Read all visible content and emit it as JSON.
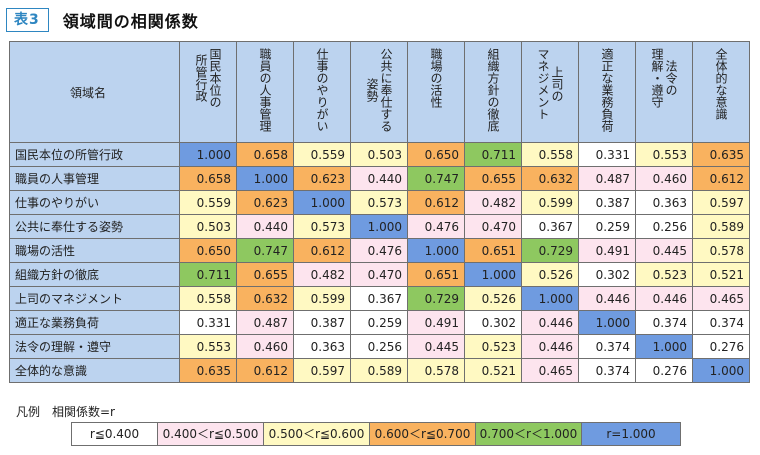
{
  "header": {
    "badge": "表3",
    "title": "領域間の相関係数"
  },
  "table": {
    "corner_label": "領域名",
    "columns": [
      "国民本位の\n所管行政",
      "職員の人事管理",
      "仕事のやりがい",
      "公共に奉仕する\n姿勢",
      "職場の活性",
      "組織方針の徹底",
      "上司の\nマネジメント",
      "適正な業務負荷",
      "法令の\n理解・遵守",
      "全体的な意識"
    ],
    "rows": [
      {
        "label": "国民本位の所管行政",
        "values": [
          "1.000",
          "0.658",
          "0.559",
          "0.503",
          "0.650",
          "0.711",
          "0.558",
          "0.331",
          "0.553",
          "0.635"
        ]
      },
      {
        "label": "職員の人事管理",
        "values": [
          "0.658",
          "1.000",
          "0.623",
          "0.440",
          "0.747",
          "0.655",
          "0.632",
          "0.487",
          "0.460",
          "0.612"
        ]
      },
      {
        "label": "仕事のやりがい",
        "values": [
          "0.559",
          "0.623",
          "1.000",
          "0.573",
          "0.612",
          "0.482",
          "0.599",
          "0.387",
          "0.363",
          "0.597"
        ]
      },
      {
        "label": "公共に奉仕する姿勢",
        "values": [
          "0.503",
          "0.440",
          "0.573",
          "1.000",
          "0.476",
          "0.470",
          "0.367",
          "0.259",
          "0.256",
          "0.589"
        ]
      },
      {
        "label": "職場の活性",
        "values": [
          "0.650",
          "0.747",
          "0.612",
          "0.476",
          "1.000",
          "0.651",
          "0.729",
          "0.491",
          "0.445",
          "0.578"
        ]
      },
      {
        "label": "組織方針の徹底",
        "values": [
          "0.711",
          "0.655",
          "0.482",
          "0.470",
          "0.651",
          "1.000",
          "0.526",
          "0.302",
          "0.523",
          "0.521"
        ]
      },
      {
        "label": "上司のマネジメント",
        "values": [
          "0.558",
          "0.632",
          "0.599",
          "0.367",
          "0.729",
          "0.526",
          "1.000",
          "0.446",
          "0.446",
          "0.465"
        ]
      },
      {
        "label": "適正な業務負荷",
        "values": [
          "0.331",
          "0.487",
          "0.387",
          "0.259",
          "0.491",
          "0.302",
          "0.446",
          "1.000",
          "0.374",
          "0.374"
        ]
      },
      {
        "label": "法令の理解・遵守",
        "values": [
          "0.553",
          "0.460",
          "0.363",
          "0.256",
          "0.445",
          "0.523",
          "0.446",
          "0.374",
          "1.000",
          "0.276"
        ]
      },
      {
        "label": "全体的な意識",
        "values": [
          "0.635",
          "0.612",
          "0.597",
          "0.589",
          "0.578",
          "0.521",
          "0.465",
          "0.374",
          "0.276",
          "1.000"
        ]
      }
    ]
  },
  "legend": {
    "title": "凡例　相関係数=r",
    "items": [
      {
        "label": "r≦0.400",
        "color": "#ffffff"
      },
      {
        "label": "0.400＜r≦0.500",
        "color": "#fde4ee"
      },
      {
        "label": "0.500＜r≦0.600",
        "color": "#fff9c2"
      },
      {
        "label": "0.600＜r≦0.700",
        "color": "#f9b25f"
      },
      {
        "label": "0.700＜r＜1.000",
        "color": "#8ec860"
      },
      {
        "label": "r=1.000",
        "color": "#6f9be0"
      }
    ]
  }
}
